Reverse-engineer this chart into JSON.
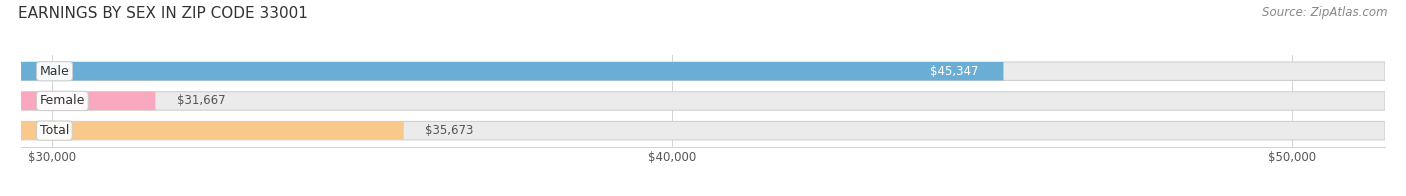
{
  "title": "EARNINGS BY SEX IN ZIP CODE 33001",
  "source": "Source: ZipAtlas.com",
  "categories": [
    "Male",
    "Female",
    "Total"
  ],
  "values": [
    45347,
    31667,
    35673
  ],
  "bar_colors": [
    "#6aaed6",
    "#f9a8c0",
    "#f8c98a"
  ],
  "value_labels": [
    "$45,347",
    "$31,667",
    "$35,673"
  ],
  "value_label_inside": [
    true,
    false,
    false
  ],
  "xlim_min": 29500,
  "xlim_max": 51500,
  "xticks": [
    30000,
    40000,
    50000
  ],
  "xtick_labels": [
    "$30,000",
    "$40,000",
    "$50,000"
  ],
  "bg_color": "#ffffff",
  "bar_bg_color": "#ebebeb",
  "title_fontsize": 11,
  "source_fontsize": 8.5,
  "bar_label_fontsize": 9,
  "value_fontsize": 8.5,
  "axis_label_fontsize": 8.5,
  "bar_height": 0.62,
  "figsize": [
    14.06,
    1.96
  ],
  "dpi": 100
}
